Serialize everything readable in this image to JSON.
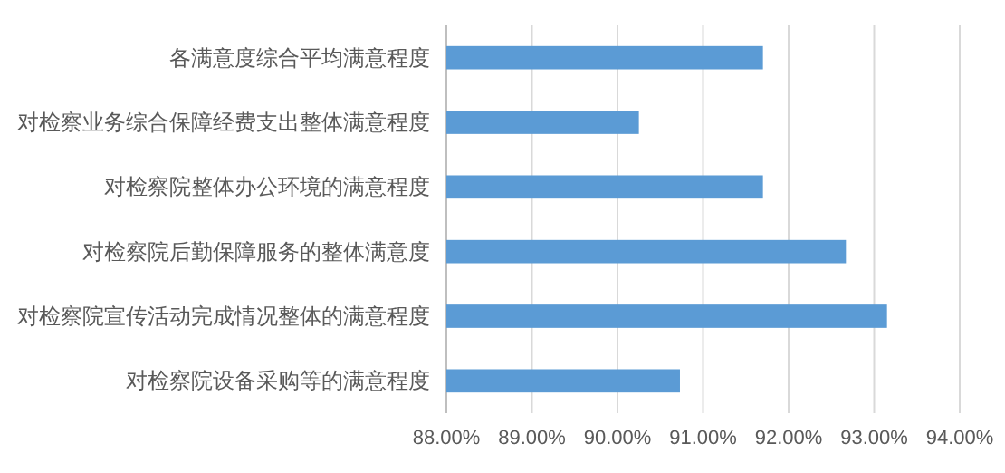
{
  "chart_data": {
    "type": "bar",
    "orientation": "horizontal",
    "categories": [
      "各满意度综合平均满意程度",
      "对检察业务综合保障经费支出整体满意程度",
      "对检察院整体办公环境的满意程度",
      "对检察院后勤保障服务的整体满意度",
      "对检察院宣传活动完成情况整体的满意程度",
      "对检察院设备采购等的满意程度"
    ],
    "values": [
      91.7,
      90.25,
      91.7,
      92.67,
      93.15,
      90.73
    ],
    "color": "#5b9bd5",
    "xlim": [
      88,
      94
    ],
    "xticks": [
      {
        "value": 88,
        "label": "88.00%"
      },
      {
        "value": 89,
        "label": "89.00%"
      },
      {
        "value": 90,
        "label": "90.00%"
      },
      {
        "value": 91,
        "label": "91.00%"
      },
      {
        "value": 92,
        "label": "92.00%"
      },
      {
        "value": 93,
        "label": "93.00%"
      },
      {
        "value": 94,
        "label": "94.00%"
      }
    ],
    "grid": "x"
  }
}
